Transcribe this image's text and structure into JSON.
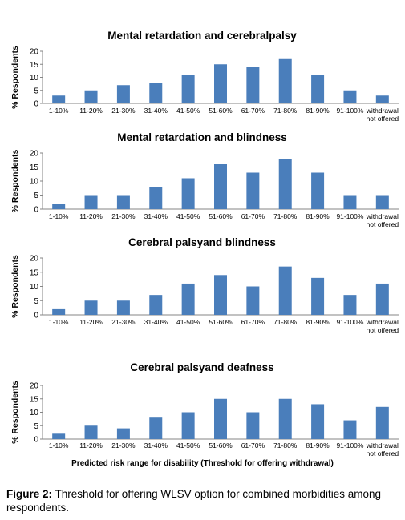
{
  "figure": {
    "caption_label": "Figure 2:",
    "caption_text": " Threshold for offering WLSV option for combined morbidities among respondents.",
    "xlabel": "Predicted risk range for disability (Threshold for offering withdrawal)"
  },
  "chart_data": [
    {
      "type": "bar",
      "title": "Mental retardation and cerebralpalsy",
      "ylabel": "% Respondents",
      "ylim": [
        0,
        20
      ],
      "yticks": [
        0,
        5,
        10,
        15,
        20
      ],
      "categories": [
        "1-10%",
        "11-20%",
        "21-30%",
        "31-40%",
        "41-50%",
        "51-60%",
        "61-70%",
        "71-80%",
        "81-90%",
        "91-100%",
        "withdrawal not offered"
      ],
      "values": [
        3,
        5,
        7,
        8,
        11,
        15,
        14,
        17,
        11,
        5,
        3
      ],
      "color": "#4a7ebb"
    },
    {
      "type": "bar",
      "title": "Mental retardation and blindness",
      "ylabel": "% Respondents",
      "ylim": [
        0,
        20
      ],
      "yticks": [
        0,
        5,
        10,
        15,
        20
      ],
      "categories": [
        "1-10%",
        "11-20%",
        "21-30%",
        "31-40%",
        "41-50%",
        "51-60%",
        "61-70%",
        "71-80%",
        "81-90%",
        "91-100%",
        "withdrawal not offered"
      ],
      "values": [
        2,
        5,
        5,
        8,
        11,
        16,
        13,
        18,
        13,
        5,
        5
      ],
      "color": "#4a7ebb"
    },
    {
      "type": "bar",
      "title": "Cerebral palsyand blindness",
      "ylabel": "% Respondents",
      "ylim": [
        0,
        20
      ],
      "yticks": [
        0,
        5,
        10,
        15,
        20
      ],
      "categories": [
        "1-10%",
        "11-20%",
        "21-30%",
        "31-40%",
        "41-50%",
        "51-60%",
        "61-70%",
        "71-80%",
        "81-90%",
        "91-100%",
        "withdrawal not offered"
      ],
      "values": [
        2,
        5,
        5,
        7,
        11,
        14,
        10,
        17,
        13,
        7,
        11
      ],
      "color": "#4a7ebb"
    },
    {
      "type": "bar",
      "title": "Cerebral palsyand deafness",
      "ylabel": "% Respondents",
      "ylim": [
        0,
        20
      ],
      "yticks": [
        0,
        5,
        10,
        15,
        20
      ],
      "categories": [
        "1-10%",
        "11-20%",
        "21-30%",
        "31-40%",
        "41-50%",
        "51-60%",
        "61-70%",
        "71-80%",
        "81-90%",
        "91-100%",
        "withdrawal not offered"
      ],
      "values": [
        2,
        5,
        4,
        8,
        10,
        15,
        10,
        15,
        13,
        7,
        12
      ],
      "color": "#4a7ebb"
    }
  ]
}
